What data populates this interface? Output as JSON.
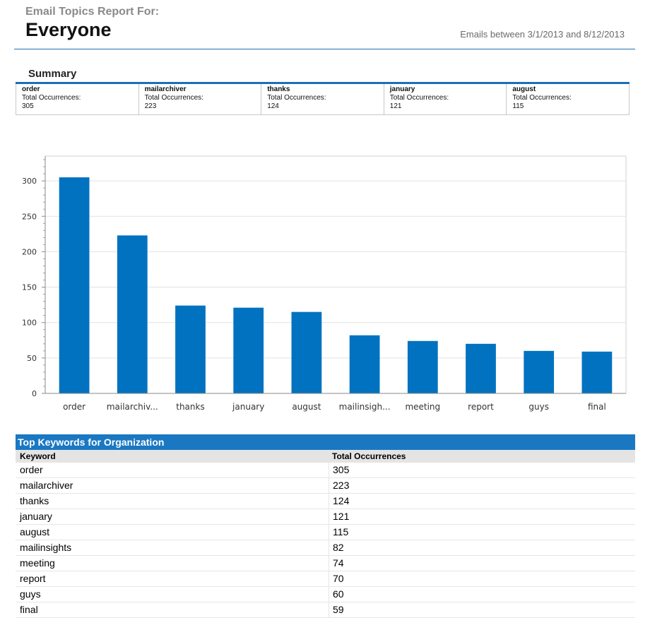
{
  "header": {
    "report_label": "Email Topics Report For:",
    "audience": "Everyone",
    "date_range": "Emails between 3/1/2013 and 8/12/2013"
  },
  "summary": {
    "title": "Summary",
    "occurrences_label": "Total Occurrences:",
    "items": [
      {
        "keyword": "order",
        "count": "305"
      },
      {
        "keyword": "mailarchiver",
        "count": "223"
      },
      {
        "keyword": "thanks",
        "count": "124"
      },
      {
        "keyword": "january",
        "count": "121"
      },
      {
        "keyword": "august",
        "count": "115"
      }
    ]
  },
  "chart_data": {
    "type": "bar",
    "categories": [
      "order",
      "mailarchiv...",
      "thanks",
      "january",
      "august",
      "mailinsigh...",
      "meeting",
      "report",
      "guys",
      "final"
    ],
    "values": [
      305,
      223,
      124,
      121,
      115,
      82,
      74,
      70,
      60,
      59
    ],
    "ylim": [
      0,
      335
    ],
    "yticks": [
      0,
      50,
      100,
      150,
      200,
      250,
      300
    ],
    "grid": true,
    "bar_color": "#0072c0"
  },
  "keywords_table": {
    "title": "Top Keywords for Organization",
    "columns": [
      "Keyword",
      "Total Occurrences"
    ],
    "rows": [
      [
        "order",
        "305"
      ],
      [
        "mailarchiver",
        "223"
      ],
      [
        "thanks",
        "124"
      ],
      [
        "january",
        "121"
      ],
      [
        "august",
        "115"
      ],
      [
        "mailinsights",
        "82"
      ],
      [
        "meeting",
        "74"
      ],
      [
        "report",
        "70"
      ],
      [
        "guys",
        "60"
      ],
      [
        "final",
        "59"
      ]
    ]
  },
  "colors": {
    "accent": "#1a78c2",
    "rule": "#1f6fb5"
  }
}
